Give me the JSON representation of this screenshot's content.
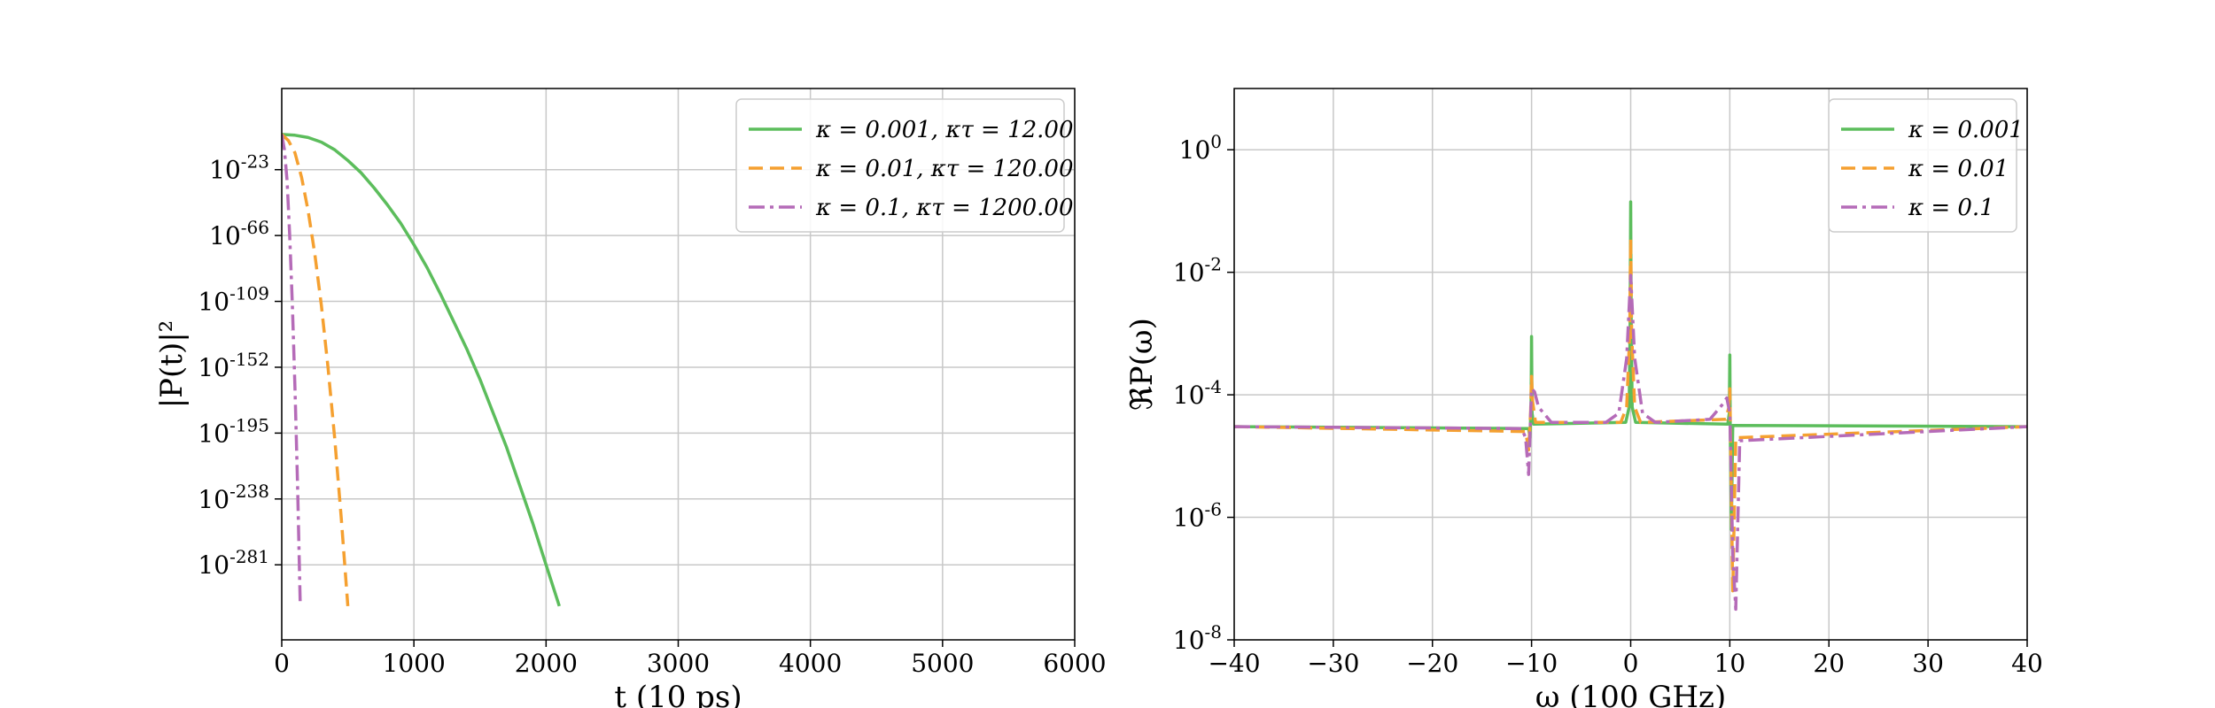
{
  "chart_data": [
    {
      "type": "line",
      "xlabel": "t (10 ps)",
      "ylabel": "|P(t)|²",
      "xlim": [
        0,
        6000
      ],
      "ylim": [
        -330,
        30
      ],
      "y_scale": "log10 (exponent axis)",
      "x_ticks": [
        0,
        1000,
        2000,
        3000,
        4000,
        5000,
        6000
      ],
      "y_tick_exponents": [
        -23,
        -66,
        -109,
        -152,
        -195,
        -238,
        -281
      ],
      "grid": true,
      "legend_position": "top-right",
      "series": [
        {
          "name": "κ = 0.001, κτ = 12.00",
          "color": "#5cbd5c",
          "style": "solid",
          "x": [
            0,
            100,
            200,
            300,
            400,
            500,
            600,
            700,
            800,
            900,
            1000,
            1100,
            1200,
            1300,
            1400,
            1500,
            1600,
            1700,
            1800,
            1900,
            2000,
            2100
          ],
          "y": [
            0,
            -0.5,
            -2,
            -5,
            -10,
            -17,
            -25,
            -35,
            -46,
            -58,
            -72,
            -87,
            -104,
            -122,
            -140,
            -160,
            -182,
            -204,
            -229,
            -254,
            -281,
            -308
          ]
        },
        {
          "name": "κ = 0.01, κτ = 120.00",
          "color": "#f5a030",
          "style": "dashed",
          "x": [
            0,
            50,
            100,
            150,
            200,
            250,
            300,
            350,
            400,
            450,
            500
          ],
          "y": [
            0,
            -4,
            -12,
            -28,
            -50,
            -78,
            -112,
            -152,
            -198,
            -250,
            -308
          ]
        },
        {
          "name": "κ = 0.1, κτ = 1200.00",
          "color": "#b56bb8",
          "style": "dashdot",
          "x": [
            0,
            20,
            40,
            60,
            80,
            100,
            120,
            140
          ],
          "y": [
            0,
            -10,
            -30,
            -65,
            -110,
            -165,
            -230,
            -308
          ]
        }
      ]
    },
    {
      "type": "line",
      "xlabel": "ω (100 GHz)",
      "ylabel": "ℜP(ω)",
      "xlim": [
        -40,
        40
      ],
      "ylim": [
        -8,
        1
      ],
      "y_scale": "log10",
      "x_ticks": [
        -40,
        -30,
        -20,
        -10,
        0,
        10,
        20,
        30,
        40
      ],
      "y_tick_exponents": [
        0,
        -2,
        -4,
        -6,
        -8
      ],
      "grid": true,
      "legend_position": "top-right",
      "series": [
        {
          "name": "κ = 0.001",
          "color": "#5cbd5c",
          "style": "solid",
          "x": [
            -40,
            -10.3,
            -10.15,
            -10.05,
            -10,
            -9.95,
            -9.8,
            -0.5,
            -0.15,
            -0.05,
            0,
            0.05,
            0.15,
            0.5,
            9.8,
            9.95,
            10,
            10.05,
            10.15,
            10.3,
            40
          ],
          "y": [
            -4.52,
            -4.55,
            -4.7,
            -4.1,
            -3.05,
            -4.3,
            -4.48,
            -4.45,
            -4.2,
            -2.8,
            -0.85,
            -2.8,
            -4.2,
            -4.45,
            -4.48,
            -4.3,
            -3.35,
            -4.6,
            -6.2,
            -4.5,
            -4.52
          ]
        },
        {
          "name": "κ = 0.01",
          "color": "#f5a030",
          "style": "dashed",
          "x": [
            -40,
            -10.6,
            -10.3,
            -10.1,
            -10,
            -9.9,
            -9.6,
            -1.0,
            -0.4,
            -0.1,
            0,
            0.1,
            0.4,
            1.0,
            9.6,
            9.9,
            10,
            10.1,
            10.3,
            10.6,
            40
          ],
          "y": [
            -4.52,
            -4.6,
            -4.9,
            -4.3,
            -3.7,
            -4.1,
            -4.45,
            -4.45,
            -4.2,
            -3.0,
            -1.45,
            -3.0,
            -4.2,
            -4.45,
            -4.4,
            -4.2,
            -3.9,
            -5.0,
            -7.2,
            -4.7,
            -4.52
          ]
        },
        {
          "name": "κ = 0.1",
          "color": "#b56bb8",
          "style": "dashdot",
          "x": [
            -40,
            -11,
            -10.6,
            -10.3,
            -10,
            -9.7,
            -9.3,
            -8,
            -2.5,
            -1.2,
            -0.4,
            0,
            0.4,
            1.2,
            2.5,
            8,
            9.3,
            9.7,
            10,
            10.3,
            10.6,
            11,
            40
          ],
          "y": [
            -4.52,
            -4.55,
            -4.7,
            -5.3,
            -3.9,
            -3.95,
            -4.2,
            -4.45,
            -4.45,
            -4.3,
            -3.4,
            -2.05,
            -3.4,
            -4.3,
            -4.45,
            -4.4,
            -4.15,
            -4.05,
            -4.3,
            -6.6,
            -7.5,
            -4.75,
            -4.52
          ]
        }
      ]
    }
  ]
}
